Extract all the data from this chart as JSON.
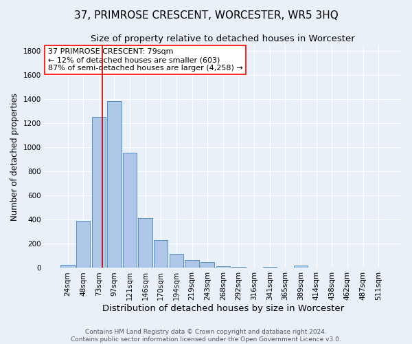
{
  "title": "37, PRIMROSE CRESCENT, WORCESTER, WR5 3HQ",
  "subtitle": "Size of property relative to detached houses in Worcester",
  "xlabel": "Distribution of detached houses by size in Worcester",
  "ylabel": "Number of detached properties",
  "footer_line1": "Contains HM Land Registry data © Crown copyright and database right 2024.",
  "footer_line2": "Contains public sector information licensed under the Open Government Licence v3.0.",
  "bar_labels": [
    "24sqm",
    "48sqm",
    "73sqm",
    "97sqm",
    "121sqm",
    "146sqm",
    "170sqm",
    "194sqm",
    "219sqm",
    "243sqm",
    "268sqm",
    "292sqm",
    "316sqm",
    "341sqm",
    "365sqm",
    "389sqm",
    "414sqm",
    "438sqm",
    "462sqm",
    "487sqm",
    "511sqm"
  ],
  "bar_values": [
    25,
    390,
    1255,
    1385,
    955,
    415,
    230,
    115,
    65,
    50,
    15,
    10,
    5,
    10,
    5,
    20,
    0,
    0,
    0,
    0,
    0
  ],
  "bar_color": "#aec6e8",
  "bar_edgecolor": "#5591c5",
  "background_color": "#eaf0f8",
  "grid_color": "#ffffff",
  "ylim": [
    0,
    1850
  ],
  "yticks": [
    0,
    200,
    400,
    600,
    800,
    1000,
    1200,
    1400,
    1600,
    1800
  ],
  "property_label": "37 PRIMROSE CRESCENT: 79sqm",
  "annotation_line1": "← 12% of detached houses are smaller (603)",
  "annotation_line2": "87% of semi-detached houses are larger (4,258) →",
  "vline_x": 2.25,
  "vline_color": "#cc0000",
  "title_fontsize": 11,
  "subtitle_fontsize": 9.5,
  "xlabel_fontsize": 9.5,
  "ylabel_fontsize": 8.5,
  "tick_fontsize": 7.5,
  "annotation_fontsize": 8,
  "footer_fontsize": 6.5
}
